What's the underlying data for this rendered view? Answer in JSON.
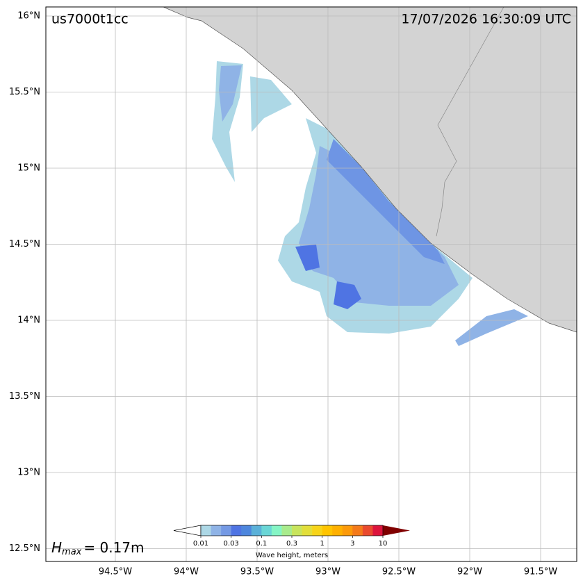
{
  "header": {
    "event_id": "us7000t1cc",
    "timestamp": "17/07/2026 16:30:09 UTC"
  },
  "map": {
    "lat_ticks": [
      {
        "value": 16,
        "label": "16°N"
      },
      {
        "value": 15.5,
        "label": "15.5°N"
      },
      {
        "value": 15,
        "label": "15°N"
      },
      {
        "value": 14.5,
        "label": "14.5°N"
      },
      {
        "value": 14,
        "label": "14°N"
      },
      {
        "value": 13.5,
        "label": "13.5°N"
      },
      {
        "value": 13,
        "label": "13°N"
      },
      {
        "value": 12.5,
        "label": "12.5°N"
      }
    ],
    "lon_ticks": [
      {
        "value": -94.5,
        "label": "94.5°W"
      },
      {
        "value": -94,
        "label": "94°W"
      },
      {
        "value": -93.5,
        "label": "93.5°W"
      },
      {
        "value": -93,
        "label": "93°W"
      },
      {
        "value": -92.5,
        "label": "92.5°W"
      },
      {
        "value": -92,
        "label": "92°W"
      },
      {
        "value": -91.5,
        "label": "91.5°W"
      }
    ]
  },
  "hmax": {
    "symbol": "H",
    "subscript": "max",
    "text": "= 0.17m"
  },
  "colorbar": {
    "colors": [
      "#add8e6",
      "#8fb3e6",
      "#7499e4",
      "#4f74e3",
      "#4d86dd",
      "#5ab0d8",
      "#6ad6d6",
      "#85f5c5",
      "#a8eb8c",
      "#c8e45c",
      "#e2de3a",
      "#f7d419",
      "#ffc400",
      "#ffb000",
      "#fc9a0a",
      "#f47a1a",
      "#e94a2e",
      "#dc143c"
    ],
    "under_color": "#ffffff",
    "over_color": "#800000",
    "ticks": [
      "0.01",
      "0.03",
      "0.1",
      "0.3",
      "1",
      "3",
      "10"
    ],
    "label": "Wave height, meters"
  }
}
